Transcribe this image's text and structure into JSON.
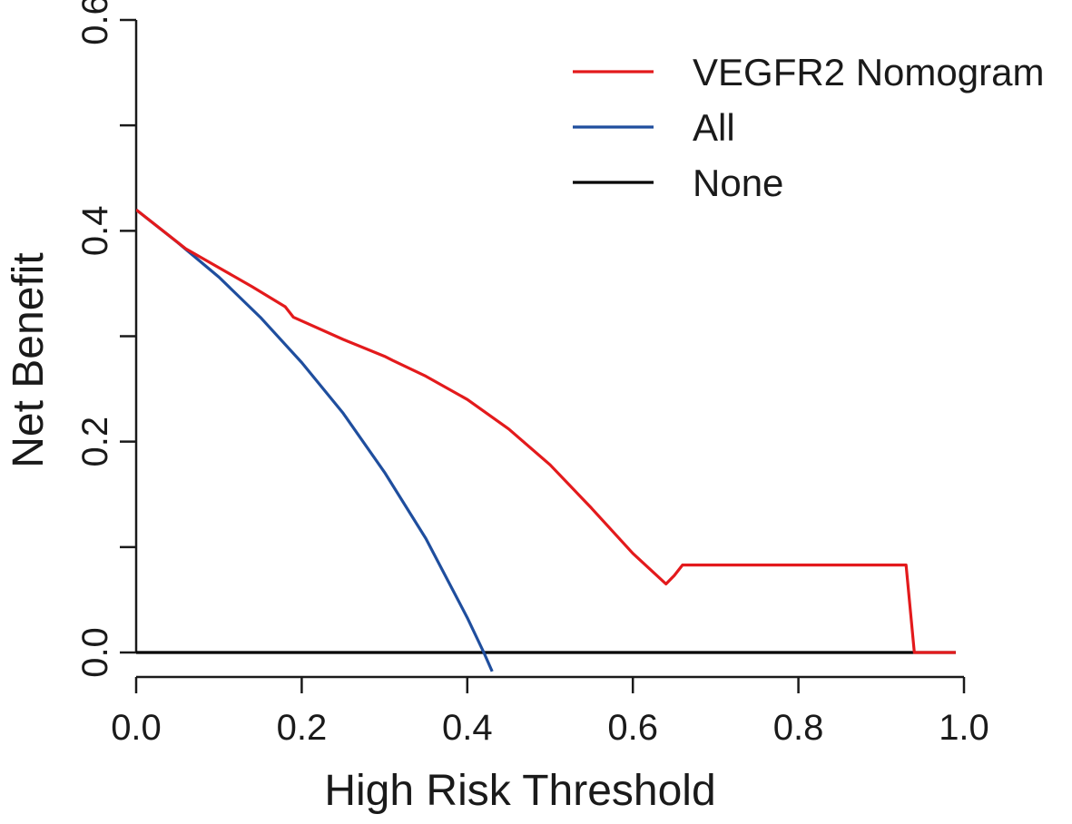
{
  "chart_data": {
    "type": "line",
    "title": "",
    "xlabel": "High Risk Threshold",
    "ylabel": "Net Benefit",
    "xlim": [
      0.0,
      1.0
    ],
    "ylim": [
      0.0,
      0.6
    ],
    "xticks": [
      "0.0",
      "0.2",
      "0.4",
      "0.6",
      "0.8",
      "1.0"
    ],
    "xtick_values": [
      0.0,
      0.2,
      0.4,
      0.6,
      0.8,
      1.0
    ],
    "yticks": [
      "0.0",
      "0.2",
      "0.4",
      "0.6"
    ],
    "ytick_values": [
      0.0,
      0.2,
      0.4,
      0.6
    ],
    "yminor_values": [
      0.1,
      0.3,
      0.5
    ],
    "grid": false,
    "legend_position": "top-right",
    "series": [
      {
        "name": "VEGFR2 Nomogram",
        "color": "#e31a1c",
        "x": [
          0.0,
          0.06,
          0.1,
          0.14,
          0.18,
          0.19,
          0.25,
          0.3,
          0.31,
          0.35,
          0.4,
          0.45,
          0.5,
          0.55,
          0.6,
          0.64,
          0.65,
          0.66,
          0.93,
          0.94,
          0.99
        ],
        "y": [
          0.42,
          0.383,
          0.365,
          0.347,
          0.328,
          0.318,
          0.297,
          0.281,
          0.277,
          0.262,
          0.24,
          0.212,
          0.178,
          0.137,
          0.094,
          0.065,
          0.073,
          0.083,
          0.083,
          0.0,
          0.0
        ]
      },
      {
        "name": "All",
        "color": "#1f4e9e",
        "x": [
          0.0,
          0.05,
          0.1,
          0.15,
          0.2,
          0.25,
          0.3,
          0.35,
          0.4,
          0.42,
          0.43
        ],
        "y": [
          0.42,
          0.389,
          0.356,
          0.318,
          0.275,
          0.227,
          0.171,
          0.108,
          0.033,
          0.0,
          -0.018
        ]
      },
      {
        "name": "None",
        "color": "#000000",
        "x": [
          0.0,
          0.99
        ],
        "y": [
          0.0,
          0.0
        ]
      }
    ]
  }
}
